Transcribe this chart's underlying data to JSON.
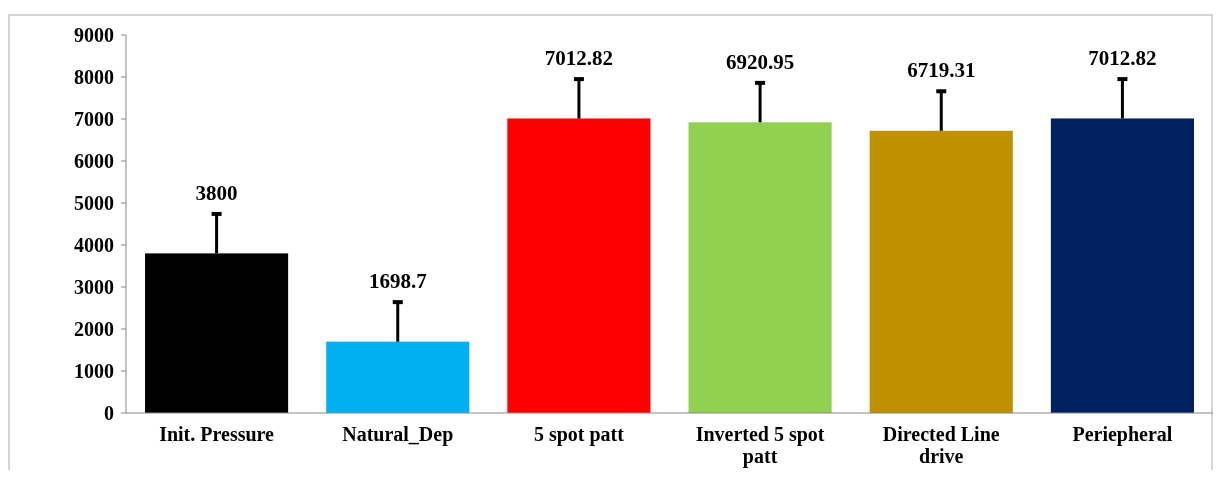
{
  "chart_data": {
    "type": "bar",
    "categories": [
      "Init. Pressure",
      "Natural_Dep",
      "5 spot patt",
      "Inverted 5 spot patt",
      "Directed Line drive",
      "Periepheral"
    ],
    "values": [
      3800,
      1698.7,
      7012.82,
      6920.95,
      6719.31,
      7012.82
    ],
    "colors": [
      "#000000",
      "#00b0f0",
      "#ff0000",
      "#92d050",
      "#bf9000",
      "#002060"
    ],
    "errors": [
      [
        3800,
        4740
      ],
      [
        1698.7,
        2640
      ],
      [
        7012.82,
        7950
      ],
      [
        6920.95,
        7860
      ],
      [
        6719.31,
        7660
      ],
      [
        7012.82,
        7950
      ]
    ],
    "ylim": [
      0,
      9000
    ],
    "yticks": [
      0,
      1000,
      2000,
      3000,
      4000,
      5000,
      6000,
      7000,
      8000,
      9000
    ],
    "data_labels": true,
    "grid": false
  }
}
